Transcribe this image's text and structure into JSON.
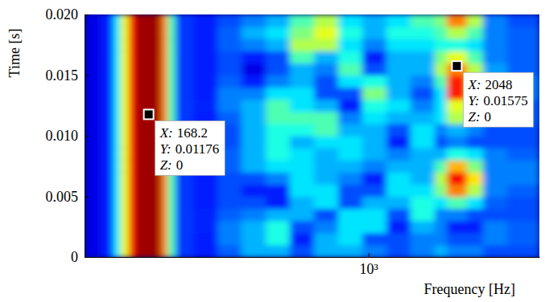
{
  "chart_data": {
    "type": "heatmap",
    "x_label": "Frequency [Hz]",
    "y_label": "Time [s]",
    "log": "x",
    "grid": false,
    "color": "jet",
    "xlim": [
      100,
      4000
    ],
    "xticks": [
      {
        "value": 1000,
        "label": "10³"
      }
    ],
    "ylim": [
      0,
      0.02
    ],
    "yticks": [
      0,
      0.005,
      {
        "value": 0.01,
        "label": "0.010"
      },
      0.015,
      {
        "value": 0.02,
        "label": "0.020"
      }
    ],
    "zlim": [
      0,
      1
    ],
    "x_edges": [
      100,
      114,
      126,
      134,
      143,
      151,
      186,
      196,
      209,
      241,
      294,
      357,
      435,
      528,
      643,
      782,
      951,
      1157,
      1407,
      1711,
      1888,
      2222,
      2532,
      3080,
      4000
    ],
    "y_edges": [
      0,
      0.001,
      0.002,
      0.003,
      0.004,
      0.005,
      0.006,
      0.007,
      0.008,
      0.009,
      0.01,
      0.011,
      0.012,
      0.013,
      0.014,
      0.015,
      0.016,
      0.017,
      0.018,
      0.019,
      0.02
    ],
    "z": [
      [
        0.1,
        0.15,
        0.35,
        0.6,
        0.85,
        0.97,
        0.75,
        0.45,
        0.18,
        0.15,
        0.22,
        0.3,
        0.3,
        0.2,
        0.3,
        0.3,
        0.25,
        0.2,
        0.25,
        0.3,
        0.25,
        0.25,
        0.2,
        0.2
      ],
      [
        0.1,
        0.15,
        0.35,
        0.6,
        0.85,
        0.97,
        0.75,
        0.45,
        0.18,
        0.15,
        0.25,
        0.3,
        0.4,
        0.15,
        0.3,
        0.35,
        0.2,
        0.2,
        0.25,
        0.25,
        0.2,
        0.2,
        0.25,
        0.22
      ],
      [
        0.1,
        0.15,
        0.35,
        0.6,
        0.85,
        0.97,
        0.75,
        0.45,
        0.18,
        0.16,
        0.25,
        0.3,
        0.4,
        0.2,
        0.25,
        0.35,
        0.35,
        0.15,
        0.3,
        0.25,
        0.15,
        0.15,
        0.25,
        0.22
      ],
      [
        0.1,
        0.15,
        0.35,
        0.6,
        0.85,
        0.97,
        0.75,
        0.45,
        0.18,
        0.16,
        0.22,
        0.25,
        0.3,
        0.3,
        0.2,
        0.35,
        0.35,
        0.2,
        0.4,
        0.25,
        0.25,
        0.2,
        0.2,
        0.2
      ],
      [
        0.1,
        0.15,
        0.35,
        0.6,
        0.85,
        0.97,
        0.75,
        0.45,
        0.18,
        0.15,
        0.2,
        0.2,
        0.15,
        0.3,
        0.35,
        0.2,
        0.3,
        0.3,
        0.4,
        0.35,
        0.45,
        0.35,
        0.22,
        0.2
      ],
      [
        0.1,
        0.15,
        0.35,
        0.6,
        0.85,
        0.97,
        0.75,
        0.45,
        0.18,
        0.15,
        0.2,
        0.15,
        0.15,
        0.35,
        0.35,
        0.2,
        0.2,
        0.35,
        0.35,
        0.5,
        0.75,
        0.55,
        0.25,
        0.22
      ],
      [
        0.1,
        0.15,
        0.35,
        0.6,
        0.85,
        0.97,
        0.75,
        0.45,
        0.18,
        0.15,
        0.2,
        0.2,
        0.25,
        0.35,
        0.3,
        0.25,
        0.15,
        0.35,
        0.3,
        0.55,
        0.88,
        0.65,
        0.25,
        0.25
      ],
      [
        0.1,
        0.15,
        0.35,
        0.6,
        0.85,
        0.97,
        0.75,
        0.45,
        0.18,
        0.15,
        0.22,
        0.3,
        0.35,
        0.35,
        0.3,
        0.3,
        0.25,
        0.3,
        0.3,
        0.45,
        0.7,
        0.5,
        0.25,
        0.25
      ],
      [
        0.1,
        0.15,
        0.35,
        0.6,
        0.85,
        0.97,
        0.75,
        0.45,
        0.18,
        0.16,
        0.22,
        0.3,
        0.4,
        0.35,
        0.3,
        0.35,
        0.3,
        0.25,
        0.3,
        0.3,
        0.4,
        0.35,
        0.25,
        0.22
      ],
      [
        0.1,
        0.15,
        0.35,
        0.6,
        0.85,
        0.97,
        0.75,
        0.45,
        0.18,
        0.15,
        0.2,
        0.3,
        0.4,
        0.3,
        0.35,
        0.35,
        0.3,
        0.15,
        0.35,
        0.2,
        0.25,
        0.2,
        0.2,
        0.2
      ],
      [
        0.1,
        0.15,
        0.35,
        0.6,
        0.85,
        0.97,
        0.75,
        0.45,
        0.18,
        0.15,
        0.2,
        0.3,
        0.4,
        0.4,
        0.45,
        0.3,
        0.3,
        0.2,
        0.35,
        0.25,
        0.3,
        0.25,
        0.2,
        0.2
      ],
      [
        0.1,
        0.15,
        0.35,
        0.6,
        0.85,
        0.97,
        0.75,
        0.45,
        0.18,
        0.15,
        0.22,
        0.3,
        0.45,
        0.45,
        0.45,
        0.25,
        0.35,
        0.3,
        0.3,
        0.35,
        0.55,
        0.4,
        0.25,
        0.22
      ],
      [
        0.1,
        0.15,
        0.35,
        0.6,
        0.85,
        0.97,
        0.75,
        0.45,
        0.18,
        0.16,
        0.25,
        0.3,
        0.45,
        0.35,
        0.3,
        0.15,
        0.4,
        0.35,
        0.25,
        0.35,
        0.6,
        0.45,
        0.28,
        0.22
      ],
      [
        0.1,
        0.15,
        0.35,
        0.6,
        0.85,
        0.97,
        0.75,
        0.45,
        0.18,
        0.15,
        0.25,
        0.25,
        0.35,
        0.35,
        0.2,
        0.2,
        0.5,
        0.3,
        0.2,
        0.35,
        0.85,
        0.6,
        0.3,
        0.25
      ],
      [
        0.1,
        0.15,
        0.35,
        0.6,
        0.85,
        0.97,
        0.75,
        0.45,
        0.18,
        0.15,
        0.22,
        0.15,
        0.25,
        0.3,
        0.2,
        0.35,
        0.4,
        0.3,
        0.25,
        0.45,
        0.85,
        0.6,
        0.3,
        0.25
      ],
      [
        0.1,
        0.15,
        0.35,
        0.6,
        0.85,
        0.97,
        0.75,
        0.45,
        0.18,
        0.15,
        0.2,
        0.1,
        0.2,
        0.3,
        0.25,
        0.45,
        0.2,
        0.3,
        0.3,
        0.55,
        0.75,
        0.55,
        0.28,
        0.22
      ],
      [
        0.1,
        0.15,
        0.35,
        0.6,
        0.85,
        0.97,
        0.75,
        0.45,
        0.18,
        0.15,
        0.2,
        0.15,
        0.2,
        0.45,
        0.3,
        0.4,
        0.15,
        0.3,
        0.3,
        0.5,
        0.6,
        0.45,
        0.25,
        0.22
      ],
      [
        0.1,
        0.15,
        0.35,
        0.6,
        0.85,
        0.97,
        0.75,
        0.45,
        0.18,
        0.15,
        0.22,
        0.25,
        0.3,
        0.55,
        0.55,
        0.35,
        0.25,
        0.35,
        0.35,
        0.4,
        0.4,
        0.35,
        0.25,
        0.22
      ],
      [
        0.1,
        0.15,
        0.35,
        0.6,
        0.85,
        0.97,
        0.75,
        0.45,
        0.18,
        0.15,
        0.22,
        0.3,
        0.35,
        0.5,
        0.6,
        0.4,
        0.3,
        0.4,
        0.4,
        0.45,
        0.55,
        0.45,
        0.25,
        0.22
      ],
      [
        0.1,
        0.15,
        0.35,
        0.6,
        0.85,
        0.97,
        0.75,
        0.45,
        0.18,
        0.15,
        0.2,
        0.25,
        0.3,
        0.45,
        0.55,
        0.35,
        0.3,
        0.35,
        0.45,
        0.5,
        0.75,
        0.55,
        0.25,
        0.2
      ]
    ],
    "annotation_keys": [
      "X:",
      "Y:",
      "Z:"
    ],
    "annotations": [
      {
        "x": 168.2,
        "y": 0.01176,
        "z": 0
      },
      {
        "x": 2048,
        "y": 0.01575,
        "z": 0
      }
    ]
  }
}
